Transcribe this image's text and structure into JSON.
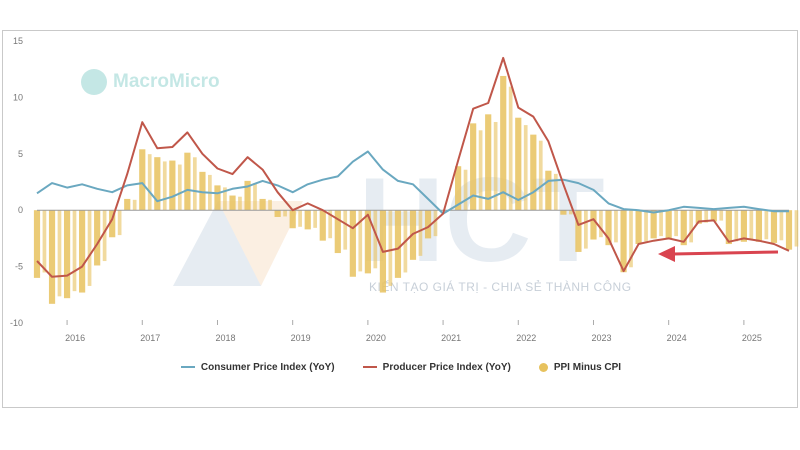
{
  "colors": {
    "cpi": "#6aa8c0",
    "ppi": "#c0574a",
    "diff": "#e7c25e",
    "zero_line": "#9a9a9a",
    "arrow": "#d9444f"
  },
  "watermarks": {
    "brand": "MacroMicro",
    "logo": "HCT",
    "tagline": "KIẾN TẠO GIÁ TRỊ - CHIA SẺ THÀNH CÔNG"
  },
  "legend": [
    {
      "label": "Consumer Price Index (YoY)",
      "key": "cpi",
      "style": "line"
    },
    {
      "label": "Producer Price Index (YoY)",
      "key": "ppi",
      "style": "line"
    },
    {
      "label": "PPI Minus CPI",
      "key": "diff",
      "style": "bar"
    }
  ],
  "chart_data": {
    "type": "line",
    "x_unit": "year",
    "xlim": [
      2015.6,
      2025.6
    ],
    "ylim": [
      -10,
      15
    ],
    "y_ticks": [
      -10,
      -5,
      0,
      5,
      10,
      15
    ],
    "x_ticks": [
      "2016",
      "2017",
      "2018",
      "2019",
      "2020",
      "2021",
      "2022",
      "2023",
      "2024",
      "2025"
    ],
    "x_tick_values": [
      2016.0,
      2017.0,
      2018.0,
      2019.0,
      2020.0,
      2021.0,
      2022.0,
      2023.0,
      2024.0,
      2025.0
    ],
    "x": [
      2015.6,
      2015.8,
      2016.0,
      2016.2,
      2016.4,
      2016.6,
      2016.8,
      2017.0,
      2017.2,
      2017.4,
      2017.6,
      2017.8,
      2018.0,
      2018.2,
      2018.4,
      2018.6,
      2018.8,
      2019.0,
      2019.2,
      2019.4,
      2019.6,
      2019.8,
      2020.0,
      2020.2,
      2020.4,
      2020.6,
      2020.8,
      2021.0,
      2021.2,
      2021.4,
      2021.6,
      2021.8,
      2022.0,
      2022.2,
      2022.4,
      2022.6,
      2022.8,
      2023.0,
      2023.2,
      2023.4,
      2023.6,
      2023.8,
      2024.0,
      2024.2,
      2024.4,
      2024.6,
      2024.8,
      2025.0,
      2025.2,
      2025.4,
      2025.6
    ],
    "series": [
      {
        "name": "Consumer Price Index (YoY)",
        "key": "cpi",
        "style": "line",
        "values": [
          1.5,
          2.4,
          2.0,
          2.3,
          1.9,
          1.6,
          2.2,
          2.4,
          0.8,
          1.2,
          1.8,
          1.6,
          1.5,
          1.9,
          2.1,
          2.6,
          2.2,
          1.6,
          2.3,
          2.7,
          3.0,
          4.3,
          5.2,
          3.6,
          2.6,
          2.3,
          1.0,
          -0.3,
          0.5,
          1.3,
          1.0,
          1.6,
          0.9,
          1.6,
          2.6,
          2.7,
          2.4,
          1.8,
          0.6,
          0.1,
          0.0,
          -0.2,
          0.0,
          0.3,
          0.2,
          0.1,
          0.2,
          0.3,
          0.1,
          -0.1,
          -0.1
        ]
      },
      {
        "name": "Producer Price Index (YoY)",
        "key": "ppi",
        "style": "line",
        "values": [
          -4.5,
          -5.9,
          -5.8,
          -5.0,
          -3.0,
          -0.8,
          3.2,
          7.8,
          5.5,
          5.6,
          6.9,
          5.0,
          3.7,
          3.2,
          4.7,
          3.6,
          1.6,
          0.0,
          0.6,
          0.0,
          -0.8,
          -1.6,
          -0.4,
          -3.7,
          -3.4,
          -2.1,
          -1.5,
          -0.3,
          4.4,
          9.0,
          9.5,
          13.5,
          9.1,
          8.3,
          6.1,
          2.3,
          -1.3,
          -0.8,
          -2.5,
          -5.4,
          -3.0,
          -2.7,
          -2.5,
          -2.8,
          -1.0,
          -0.9,
          -2.8,
          -2.5,
          -2.7,
          -3.0,
          -3.6
        ]
      },
      {
        "name": "PPI Minus CPI",
        "key": "diff",
        "style": "bar",
        "values": [
          -6.0,
          -8.3,
          -7.8,
          -7.3,
          -4.9,
          -2.4,
          1.0,
          5.4,
          4.7,
          4.4,
          5.1,
          3.4,
          2.2,
          1.3,
          2.6,
          1.0,
          -0.6,
          -1.6,
          -1.7,
          -2.7,
          -3.8,
          -5.9,
          -5.6,
          -7.3,
          -6.0,
          -4.4,
          -2.5,
          0.0,
          3.9,
          7.7,
          8.5,
          11.9,
          8.2,
          6.7,
          3.5,
          -0.4,
          -3.7,
          -2.6,
          -3.1,
          -5.5,
          -3.0,
          -2.5,
          -2.5,
          -3.1,
          -1.2,
          -1.0,
          -3.0,
          -2.8,
          -2.8,
          -2.9,
          -3.5
        ]
      }
    ],
    "grid": false,
    "legend_position": "bottom"
  }
}
